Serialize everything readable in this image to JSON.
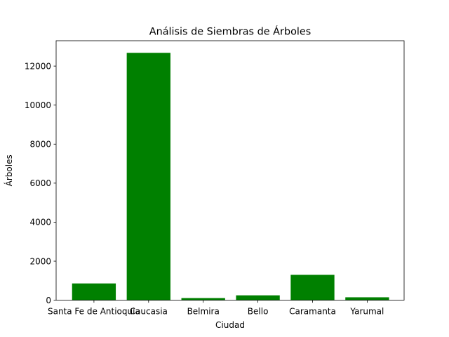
{
  "chart_data": {
    "type": "bar",
    "title": "Análisis de Siembras de Árboles",
    "xlabel": "Ciudad",
    "ylabel": "Árboles",
    "categories": [
      "Santa Fe de Antioquia",
      "Caucasia",
      "Belmira",
      "Bello",
      "Caramanta",
      "Yarumal"
    ],
    "values": [
      860,
      12680,
      110,
      250,
      1300,
      150
    ],
    "ylim": [
      0,
      13300
    ],
    "yticks": [
      0,
      2000,
      4000,
      6000,
      8000,
      10000,
      12000
    ],
    "ytick_labels": [
      "0",
      "2000",
      "4000",
      "6000",
      "8000",
      "10000",
      "12000"
    ],
    "bar_color": "#008000",
    "grid": false,
    "legend": false
  }
}
